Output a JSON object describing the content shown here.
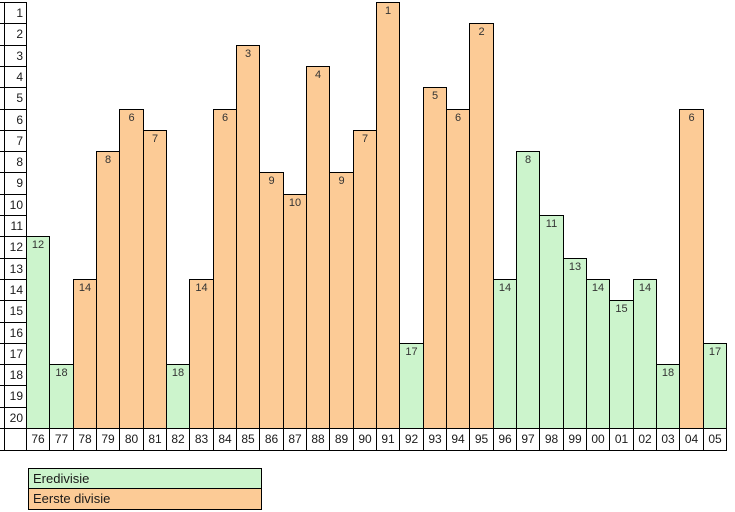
{
  "page": {
    "background": "#ffffff"
  },
  "chart_data": {
    "type": "bar",
    "title": "",
    "xlabel": "",
    "ylabel": "",
    "categories": [
      "76",
      "77",
      "78",
      "79",
      "80",
      "81",
      "82",
      "83",
      "84",
      "85",
      "86",
      "87",
      "88",
      "89",
      "90",
      "91",
      "92",
      "93",
      "94",
      "95",
      "96",
      "97",
      "98",
      "99",
      "00",
      "01",
      "02",
      "03",
      "04",
      "05"
    ],
    "values": [
      12,
      18,
      14,
      8,
      6,
      7,
      18,
      14,
      6,
      3,
      9,
      10,
      4,
      9,
      7,
      1,
      17,
      5,
      6,
      2,
      14,
      8,
      11,
      13,
      14,
      15,
      14,
      18,
      6,
      17
    ],
    "series_membership": [
      "eredivisie",
      "eredivisie",
      "eerste_divisie",
      "eerste_divisie",
      "eerste_divisie",
      "eerste_divisie",
      "eredivisie",
      "eerste_divisie",
      "eerste_divisie",
      "eerste_divisie",
      "eerste_divisie",
      "eerste_divisie",
      "eerste_divisie",
      "eerste_divisie",
      "eerste_divisie",
      "eerste_divisie",
      "eredivisie",
      "eerste_divisie",
      "eerste_divisie",
      "eerste_divisie",
      "eredivisie",
      "eredivisie",
      "eredivisie",
      "eredivisie",
      "eredivisie",
      "eredivisie",
      "eredivisie",
      "eredivisie",
      "eerste_divisie",
      "eredivisie"
    ],
    "y_axis": {
      "tick_labels": [
        1,
        2,
        3,
        4,
        5,
        6,
        7,
        8,
        9,
        10,
        11,
        12,
        13,
        14,
        15,
        16,
        17,
        18,
        19,
        20
      ],
      "range": [
        1,
        20
      ],
      "inverted": true
    },
    "grid": false,
    "data_labels_visible": true,
    "colors": {
      "eredivisie": "#ccf4cc",
      "eerste_divisie": "#fccb96",
      "bar_border": "#000000",
      "axis_border": "#000000",
      "label_text": "#333333"
    },
    "legend": {
      "position": "bottom-left",
      "entries": [
        {
          "key": "eredivisie",
          "label": "Eredivisie",
          "color": "#ccf4cc"
        },
        {
          "key": "eerste_divisie",
          "label": "Eerste divisie",
          "color": "#fccb96"
        }
      ]
    }
  }
}
